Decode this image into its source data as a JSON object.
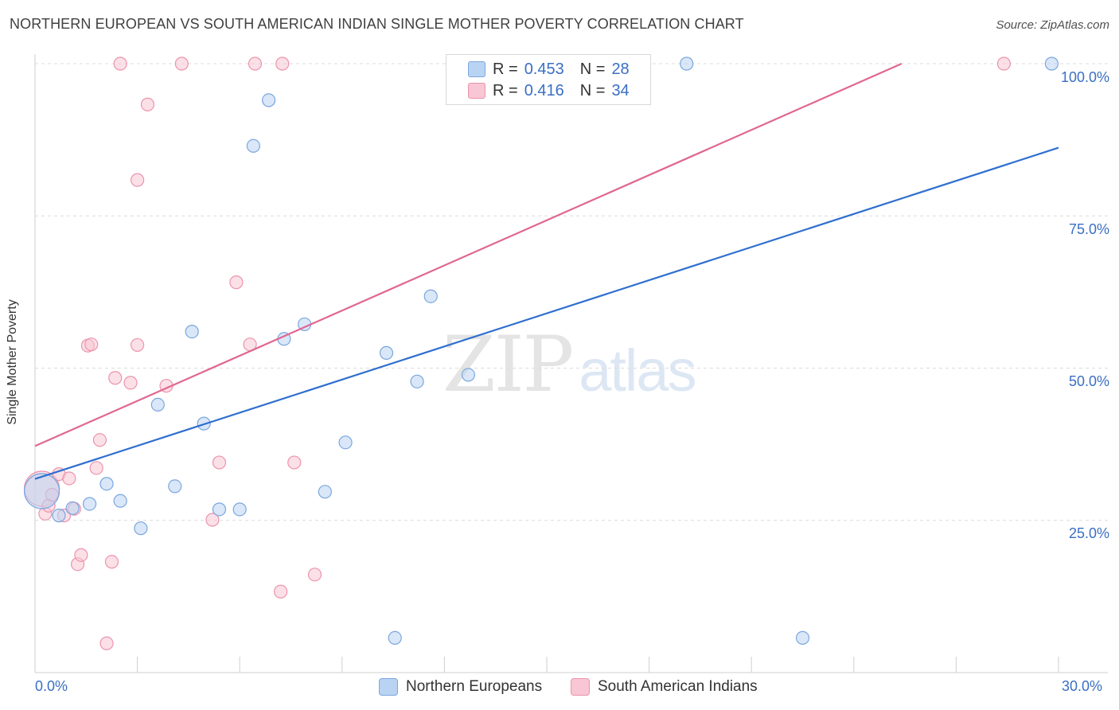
{
  "header": {
    "title": "NORTHERN EUROPEAN VS SOUTH AMERICAN INDIAN SINGLE MOTHER POVERTY CORRELATION CHART",
    "source": "Source: ZipAtlas.com"
  },
  "watermark": {
    "zip": "ZIP",
    "atlas": "atlas"
  },
  "legend": {
    "rows": [
      {
        "r_label": "R =",
        "r_value": "0.453",
        "n_label": "N =",
        "n_value": "28"
      },
      {
        "r_label": "R =",
        "r_value": "0.416",
        "n_label": "N =",
        "n_value": "34"
      }
    ]
  },
  "bottom_legend": {
    "items": [
      {
        "label": "Northern Europeans"
      },
      {
        "label": "South American Indians"
      }
    ]
  },
  "colors": {
    "blue_fill": "#b9d3f2",
    "blue_stroke": "#7aa6de",
    "blue_line": "#2f6fcf",
    "pink_fill": "#f8c6d4",
    "pink_stroke": "#ec93ad",
    "pink_line": "#e06790",
    "axis_text": "#3a6fc4",
    "grid": "#dcdcdc"
  },
  "chart_data": {
    "type": "scatter",
    "title": "NORTHERN EUROPEAN VS SOUTH AMERICAN INDIAN SINGLE MOTHER POVERTY CORRELATION CHART",
    "xlabel": "",
    "ylabel": "Single Mother Poverty",
    "xlim": [
      0,
      30
    ],
    "ylim": [
      0,
      100
    ],
    "x_ticks": [
      "0.0%",
      "30.0%"
    ],
    "y_ticks": [
      "25.0%",
      "50.0%",
      "75.0%",
      "100.0%"
    ],
    "y_tick_values": [
      25,
      50,
      75,
      100
    ],
    "grid": true,
    "legend_position": "top-center",
    "series": [
      {
        "name": "Northern Europeans",
        "r": 0.453,
        "n": 28,
        "trend": {
          "x": [
            0,
            30
          ],
          "y": [
            31.8,
            86.2
          ]
        },
        "points": [
          {
            "x": 0.2,
            "y": 29.8,
            "big": true
          },
          {
            "x": 0.7,
            "y": 25.8
          },
          {
            "x": 1.1,
            "y": 27.0
          },
          {
            "x": 1.6,
            "y": 27.7
          },
          {
            "x": 2.1,
            "y": 31.0
          },
          {
            "x": 2.5,
            "y": 28.2
          },
          {
            "x": 3.1,
            "y": 23.7
          },
          {
            "x": 3.6,
            "y": 44.0
          },
          {
            "x": 4.1,
            "y": 30.6
          },
          {
            "x": 4.6,
            "y": 56.0
          },
          {
            "x": 4.95,
            "y": 40.9
          },
          {
            "x": 5.4,
            "y": 26.8
          },
          {
            "x": 6.0,
            "y": 26.8
          },
          {
            "x": 6.4,
            "y": 86.5
          },
          {
            "x": 6.85,
            "y": 94.0
          },
          {
            "x": 7.3,
            "y": 54.8
          },
          {
            "x": 7.9,
            "y": 57.2
          },
          {
            "x": 8.5,
            "y": 29.7
          },
          {
            "x": 9.1,
            "y": 37.8
          },
          {
            "x": 10.3,
            "y": 52.5
          },
          {
            "x": 10.55,
            "y": 5.7
          },
          {
            "x": 11.2,
            "y": 47.8
          },
          {
            "x": 11.6,
            "y": 61.8
          },
          {
            "x": 12.7,
            "y": 48.9
          },
          {
            "x": 19.1,
            "y": 100.0
          },
          {
            "x": 22.5,
            "y": 5.7
          },
          {
            "x": 29.8,
            "y": 100.0
          },
          {
            "x": 13.7,
            "y": 100.0
          }
        ]
      },
      {
        "name": "South American Indians",
        "r": 0.416,
        "n": 34,
        "trend": {
          "x": [
            0,
            25.4
          ],
          "y": [
            37.2,
            100.0
          ]
        },
        "points": [
          {
            "x": 0.2,
            "y": 30.2,
            "big": true
          },
          {
            "x": 0.3,
            "y": 26.1
          },
          {
            "x": 0.4,
            "y": 27.4
          },
          {
            "x": 0.5,
            "y": 29.2
          },
          {
            "x": 0.7,
            "y": 32.6
          },
          {
            "x": 0.85,
            "y": 25.8
          },
          {
            "x": 1.0,
            "y": 31.9
          },
          {
            "x": 1.15,
            "y": 26.9
          },
          {
            "x": 1.25,
            "y": 17.8
          },
          {
            "x": 1.35,
            "y": 19.3
          },
          {
            "x": 1.55,
            "y": 53.7
          },
          {
            "x": 1.65,
            "y": 53.9
          },
          {
            "x": 1.8,
            "y": 33.6
          },
          {
            "x": 1.9,
            "y": 38.2
          },
          {
            "x": 2.1,
            "y": 4.8
          },
          {
            "x": 2.25,
            "y": 18.2
          },
          {
            "x": 2.35,
            "y": 48.4
          },
          {
            "x": 2.5,
            "y": 100.0
          },
          {
            "x": 2.8,
            "y": 47.6
          },
          {
            "x": 3.0,
            "y": 53.8
          },
          {
            "x": 3.0,
            "y": 80.9
          },
          {
            "x": 3.3,
            "y": 93.3
          },
          {
            "x": 3.85,
            "y": 47.1
          },
          {
            "x": 4.3,
            "y": 100.0
          },
          {
            "x": 5.2,
            "y": 25.1
          },
          {
            "x": 5.4,
            "y": 34.5
          },
          {
            "x": 5.9,
            "y": 64.1
          },
          {
            "x": 6.3,
            "y": 53.9
          },
          {
            "x": 6.45,
            "y": 100.0
          },
          {
            "x": 7.2,
            "y": 13.3
          },
          {
            "x": 7.25,
            "y": 100.0
          },
          {
            "x": 7.6,
            "y": 34.5
          },
          {
            "x": 8.2,
            "y": 16.1
          },
          {
            "x": 28.4,
            "y": 100.0
          }
        ]
      }
    ]
  }
}
